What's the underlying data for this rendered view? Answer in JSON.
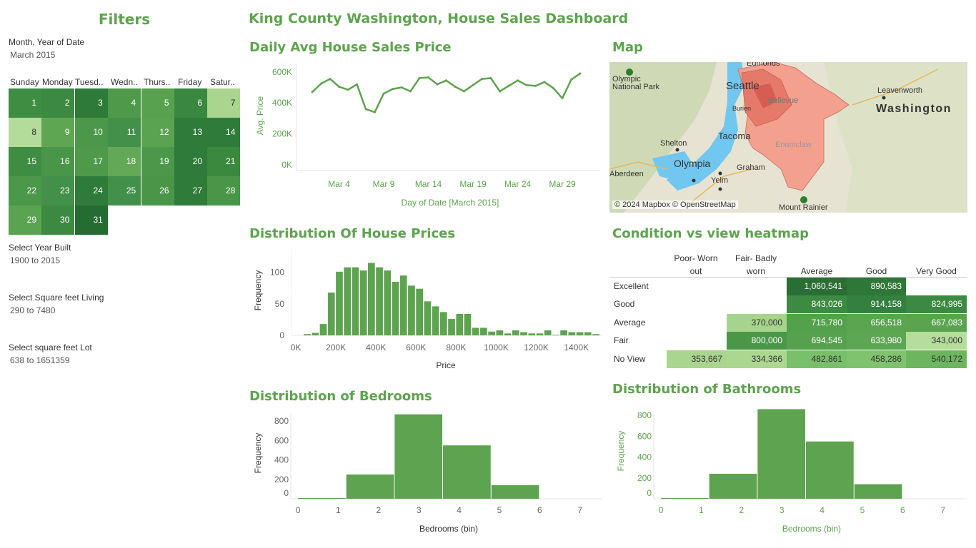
{
  "filters": {
    "title": "Filters",
    "month_label": "Month, Year of Date",
    "month_value": "March 2015",
    "weekdays": [
      "Sunday",
      "Monday",
      "Tuesd..",
      "Wedn..",
      "Thurs..",
      "Friday",
      "Satur.."
    ],
    "calendar_days": [
      {
        "day": "1",
        "color": "#3f8d43"
      },
      {
        "day": "2",
        "color": "#3c8a41"
      },
      {
        "day": "3",
        "color": "#2e7a38"
      },
      {
        "day": "4",
        "color": "#4f9a4a"
      },
      {
        "day": "5",
        "color": "#57a14f"
      },
      {
        "day": "6",
        "color": "#3a883f"
      },
      {
        "day": "7",
        "color": "#a9d58e"
      },
      {
        "day": "8",
        "color": "#b3dc9b"
      },
      {
        "day": "9",
        "color": "#5fa652"
      },
      {
        "day": "10",
        "color": "#4c984a"
      },
      {
        "day": "11",
        "color": "#43904a"
      },
      {
        "day": "12",
        "color": "#5aa350"
      },
      {
        "day": "13",
        "color": "#2f7b39"
      },
      {
        "day": "14",
        "color": "#2f7b39"
      },
      {
        "day": "15",
        "color": "#3f8d43"
      },
      {
        "day": "16",
        "color": "#4a9648"
      },
      {
        "day": "17",
        "color": "#4f9a4a"
      },
      {
        "day": "18",
        "color": "#62a856"
      },
      {
        "day": "19",
        "color": "#4c984a"
      },
      {
        "day": "20",
        "color": "#2f7b39"
      },
      {
        "day": "21",
        "color": "#3b893f"
      },
      {
        "day": "22",
        "color": "#4c984a"
      },
      {
        "day": "23",
        "color": "#43904a"
      },
      {
        "day": "24",
        "color": "#2f7b39"
      },
      {
        "day": "25",
        "color": "#43904a"
      },
      {
        "day": "26",
        "color": "#4a9648"
      },
      {
        "day": "27",
        "color": "#2f7b39"
      },
      {
        "day": "28",
        "color": "#4a9648"
      },
      {
        "day": "29",
        "color": "#5aa350"
      },
      {
        "day": "30",
        "color": "#3c8a41"
      },
      {
        "day": "31",
        "color": "#246c31"
      }
    ],
    "year_built_label": "Select Year Built",
    "year_built_value": "1900 to 2015",
    "sqft_living_label": "Select Square feet Living",
    "sqft_living_value": "290 to 7480",
    "sqft_lot_label": "Select square feet Lot",
    "sqft_lot_value": "638 to 1651359"
  },
  "dashboard_title": "King County Washington, House Sales Dashboard",
  "line_section": {
    "title": "Daily Avg House Sales Price",
    "chart_data": {
      "type": "line",
      "title": "Daily Avg House Sales Price",
      "xlabel": "Day of Date [March 2015]",
      "ylabel": "Avg. Price",
      "x": [
        1,
        2,
        3,
        4,
        5,
        6,
        7,
        8,
        9,
        10,
        11,
        12,
        13,
        14,
        15,
        16,
        17,
        18,
        19,
        20,
        21,
        22,
        23,
        24,
        25,
        26,
        27,
        28,
        29,
        30,
        31
      ],
      "values": [
        470000,
        525000,
        555000,
        505000,
        485000,
        520000,
        360000,
        340000,
        460000,
        490000,
        500000,
        475000,
        560000,
        565000,
        520000,
        545000,
        505000,
        475000,
        515000,
        555000,
        560000,
        475000,
        510000,
        545000,
        515000,
        510000,
        535000,
        495000,
        430000,
        550000,
        590000
      ],
      "x_ticks": [
        "Mar 4",
        "Mar 9",
        "Mar 14",
        "Mar 19",
        "Mar 24",
        "Mar 29"
      ],
      "y_ticks": [
        "600K",
        "400K",
        "200K",
        "0K"
      ],
      "ylim": [
        0,
        650000
      ],
      "color": "#5ea34f"
    }
  },
  "map_section": {
    "title": "Map",
    "labels": [
      "Edmonds",
      "Olympic National Park",
      "Seattle",
      "Bellevue",
      "Leavenworth",
      "Washington",
      "Shelton",
      "Tacoma",
      "Enumclaw",
      "Olympia",
      "Graham",
      "Yelm",
      "Aberdeen",
      "Mount Rainier",
      "Burien"
    ],
    "attribution": "© 2024 Mapbox © OpenStreetMap"
  },
  "histogram_section": {
    "title": "Distribution Of House Prices",
    "chart_data": {
      "type": "bar",
      "title": "Distribution Of House Prices",
      "xlabel": "Price",
      "ylabel": "Frequency",
      "bin_width": 40000,
      "bin_starts": [
        40000,
        80000,
        120000,
        160000,
        200000,
        240000,
        280000,
        320000,
        360000,
        400000,
        440000,
        480000,
        520000,
        560000,
        600000,
        640000,
        680000,
        720000,
        760000,
        800000,
        840000,
        880000,
        920000,
        960000,
        1000000,
        1040000,
        1080000,
        1120000,
        1160000,
        1200000,
        1240000,
        1280000,
        1320000,
        1360000,
        1400000,
        1440000,
        1480000
      ],
      "values": [
        2,
        4,
        18,
        68,
        101,
        108,
        108,
        103,
        115,
        108,
        103,
        85,
        95,
        79,
        74,
        54,
        46,
        37,
        26,
        34,
        34,
        12,
        12,
        6,
        8,
        3,
        8,
        5,
        3,
        3,
        8,
        1,
        8,
        5,
        5,
        5,
        2
      ],
      "x_ticks": [
        "0K",
        "200K",
        "400K",
        "600K",
        "800K",
        "1000K",
        "1200K",
        "1400K"
      ],
      "y_ticks": [
        "100",
        "50",
        "0"
      ],
      "ylim": [
        0,
        120
      ],
      "color": "#5ea34f"
    }
  },
  "heatmap_section": {
    "title": "Condition vs view heatmap",
    "chart_data": {
      "type": "heatmap",
      "columns": [
        "Poor- Worn out",
        "Fair- Badly worn",
        "Average",
        "Good",
        "Very Good"
      ],
      "rows": [
        "Excellent",
        "Good",
        "Average",
        "Fair",
        "No View"
      ],
      "cells": [
        [
          null,
          null,
          "1,060,541",
          "890,583",
          null
        ],
        [
          null,
          null,
          "843,026",
          "914,158",
          "824,995"
        ],
        [
          null,
          "370,000",
          "715,780",
          "656,518",
          "667,083"
        ],
        [
          null,
          "800,000",
          "694,545",
          "633,980",
          "343,000"
        ],
        [
          "353,667",
          "334,366",
          "482,861",
          "458,286",
          "540,172"
        ]
      ],
      "cell_colors": [
        [
          null,
          null,
          "#2a6e35",
          "#2e7738",
          null
        ],
        [
          null,
          null,
          "#3d8b42",
          "#338040",
          "#3c8941"
        ],
        [
          null,
          "#a7d48d",
          "#53a04d",
          "#5ba551",
          "#5aa450"
        ],
        [
          null,
          "#4a9748",
          "#55a14e",
          "#5da653",
          "#b5dd9c"
        ],
        [
          "#a9d58f",
          "#acd791",
          "#7ac06a",
          "#7fc36e",
          "#6db55f"
        ]
      ]
    }
  },
  "bedrooms_section": {
    "title": "Distribution of Bedrooms",
    "chart_data": {
      "type": "bar",
      "title": "Distribution of Bedrooms",
      "xlabel": "Bedrooms (bin)",
      "ylabel": "Frequency",
      "categories": [
        "1",
        "2",
        "3",
        "4",
        "5",
        "6"
      ],
      "bin_edges": [
        0.0,
        1.2,
        2.4,
        3.6,
        4.8,
        6.0,
        7.2
      ],
      "values": [
        5,
        250,
        870,
        550,
        140,
        0
      ],
      "x_ticks": [
        "0",
        "1",
        "2",
        "3",
        "4",
        "5",
        "6",
        "7"
      ],
      "y_ticks": [
        "800",
        "600",
        "400",
        "200",
        "0"
      ],
      "ylim": [
        0,
        900
      ],
      "color": "#5ea34f"
    }
  },
  "bathrooms_section": {
    "title": "Distribution of Bathrooms",
    "chart_data": {
      "type": "bar",
      "title": "Distribution of Bathrooms",
      "xlabel": "Bedrooms (bin)",
      "ylabel": "Frequency",
      "categories": [
        "1",
        "2",
        "3",
        "4",
        "5",
        "6"
      ],
      "bin_edges": [
        0.0,
        1.2,
        2.4,
        3.6,
        4.8,
        6.0,
        7.2
      ],
      "values": [
        5,
        240,
        860,
        550,
        140,
        0
      ],
      "x_ticks": [
        "0",
        "1",
        "2",
        "3",
        "4",
        "5",
        "6",
        "7"
      ],
      "y_ticks": [
        "800",
        "600",
        "400",
        "200",
        "0"
      ],
      "ylim": [
        0,
        900
      ],
      "color": "#5ea34f"
    }
  }
}
